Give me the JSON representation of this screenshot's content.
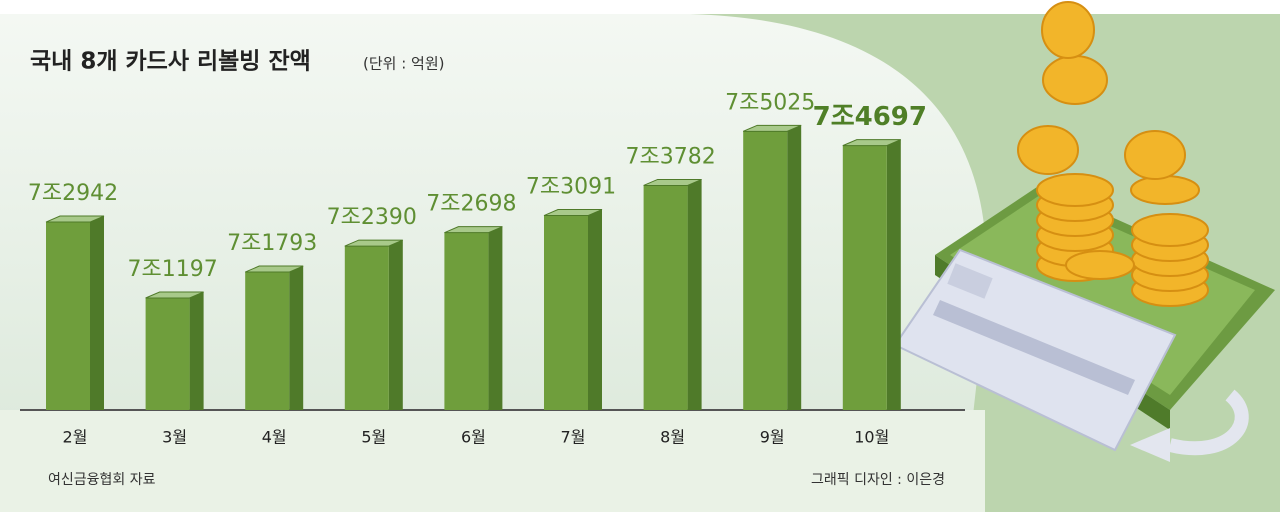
{
  "chart_data": {
    "type": "bar",
    "title": "국내 8개 카드사 리볼빙 잔액",
    "subtitle": "(단위 : 억원)",
    "categories": [
      "2월",
      "3월",
      "4월",
      "5월",
      "6월",
      "7월",
      "8월",
      "9월",
      "10월"
    ],
    "values": [
      72942,
      71197,
      71793,
      72390,
      72698,
      73091,
      73782,
      75025,
      74697
    ],
    "value_labels": [
      "7조2942",
      "7조1197",
      "7조1793",
      "7조2390",
      "7조2698",
      "7조3091",
      "7조3782",
      "7조5025",
      "7조4697"
    ],
    "color": "#6f9e3c",
    "ylim": [
      68625,
      75515
    ],
    "source": "여신금융협회 자료",
    "credit": "그래픽 디자인 : 이은경"
  }
}
